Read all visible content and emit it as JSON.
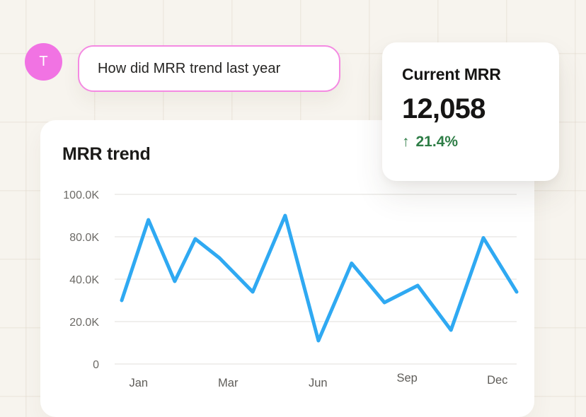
{
  "page": {
    "background_color": "#f7f4ee"
  },
  "user": {
    "avatar_initial": "T",
    "avatar_color": "#f173e3"
  },
  "chat": {
    "question": "How did MRR trend last year",
    "bubble_border_color": "#f48ae2"
  },
  "metric_card": {
    "title": "Current MRR",
    "value": "12,058",
    "arrow_icon": "↑",
    "delta": "21.4%",
    "delta_color": "#2e7d46"
  },
  "chart_card": {
    "title": "MRR trend"
  },
  "chart_data": {
    "type": "line",
    "title": "MRR trend",
    "unit": "K",
    "grid": true,
    "legend": false,
    "line_color": "#2fa9f2",
    "grid_color": "#ebeae7",
    "tick_color": "#6c6a66",
    "xlabel_color": "#5f5d59",
    "y_ticks": [
      {
        "label": "100.0K",
        "value": 100
      },
      {
        "label": "80.0K",
        "value": 80
      },
      {
        "label": "40.0K",
        "value": 40
      },
      {
        "label": "20.0K",
        "value": 20
      },
      {
        "label": "0",
        "value": 0
      }
    ],
    "x_labels": [
      {
        "label": "Jan",
        "pos": 0.079,
        "dy": 0
      },
      {
        "label": "Mar",
        "pos": 0.297,
        "dy": 0
      },
      {
        "label": "Jun",
        "pos": 0.516,
        "dy": 0
      },
      {
        "label": "Sep",
        "pos": 0.733,
        "dy": -7
      },
      {
        "label": "Dec",
        "pos": 0.953,
        "dy": -4
      }
    ],
    "series": [
      {
        "name": "MRR",
        "points": [
          {
            "x": 0.038,
            "value": 30
          },
          {
            "x": 0.103,
            "value": 88
          },
          {
            "x": 0.167,
            "value": 39
          },
          {
            "x": 0.217,
            "value": 78
          },
          {
            "x": 0.276,
            "value": 60
          },
          {
            "x": 0.357,
            "value": 34
          },
          {
            "x": 0.436,
            "value": 90
          },
          {
            "x": 0.517,
            "value": 11
          },
          {
            "x": 0.598,
            "value": 55
          },
          {
            "x": 0.678,
            "value": 29
          },
          {
            "x": 0.759,
            "value": 37
          },
          {
            "x": 0.84,
            "value": 16
          },
          {
            "x": 0.919,
            "value": 79
          },
          {
            "x": 1.0,
            "value": 34
          }
        ]
      }
    ]
  }
}
